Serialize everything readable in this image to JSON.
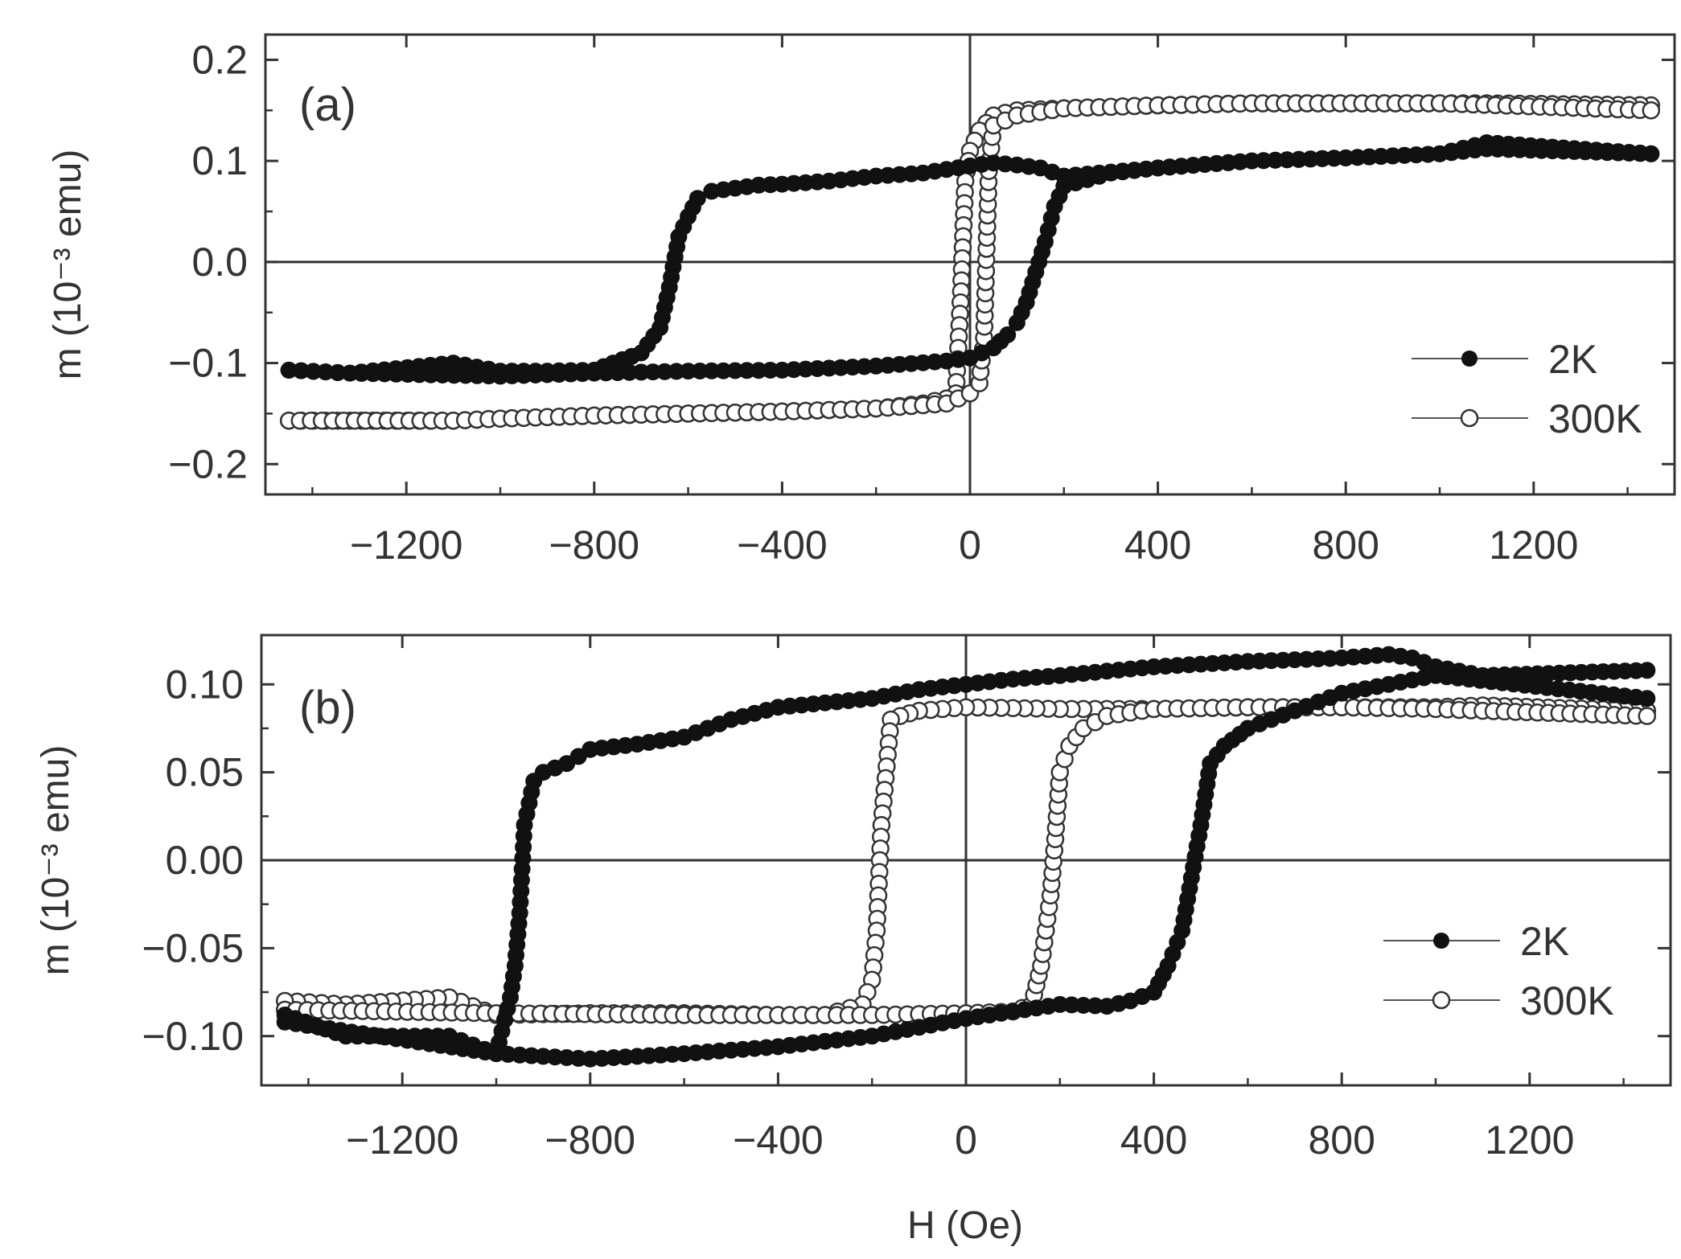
{
  "chart_data": [
    {
      "type": "scatter",
      "panel_label": "(a)",
      "xlabel": "",
      "ylabel": "m (10⁻³ emu)",
      "xlim": [
        -1500,
        1500
      ],
      "ylim": [
        -0.23,
        0.225
      ],
      "xticks": [
        -1200,
        -800,
        -400,
        0,
        400,
        800,
        1200
      ],
      "xtick_labels": [
        "−1200",
        "−800",
        "−400",
        "0",
        "400",
        "800",
        "1200"
      ],
      "yticks": [
        0.2,
        0.1,
        0.0,
        -0.1,
        -0.2
      ],
      "ytick_labels": [
        "0.2",
        "0.1",
        "0.0",
        "−0.1",
        "−0.2"
      ],
      "grid": false,
      "legend_position": "right",
      "series": [
        {
          "name": "2K",
          "marker": "filled-circle",
          "color": "#111111",
          "branches": [
            {
              "x": [
                1450,
                1100,
                1000,
                800,
                600,
                400,
                300,
                200,
                150,
                100,
                50,
                0,
                -100,
                -200,
                -300,
                -400,
                -450,
                -500,
                -550,
                -580,
                -600,
                -620,
                -640,
                -660,
                -700,
                -760,
                -800,
                -900,
                -1000,
                -1100,
                -1320,
                -1450
              ],
              "y": [
                0.107,
                0.118,
                0.107,
                0.103,
                0.1,
                0.093,
                0.089,
                0.085,
                0.093,
                0.096,
                0.098,
                0.095,
                0.088,
                0.085,
                0.08,
                0.077,
                0.076,
                0.073,
                0.07,
                0.063,
                0.045,
                0.025,
                -0.025,
                -0.065,
                -0.09,
                -0.1,
                -0.107,
                -0.108,
                -0.108,
                -0.1,
                -0.11,
                -0.107
              ]
            },
            {
              "x": [
                -1450,
                -1320,
                -1000,
                -800,
                -600,
                -400,
                -200,
                -50,
                0,
                50,
                80,
                100,
                120,
                140,
                160,
                180,
                200,
                300,
                400,
                600,
                800,
                1000,
                1100,
                1450
              ],
              "y": [
                -0.107,
                -0.11,
                -0.113,
                -0.11,
                -0.108,
                -0.107,
                -0.103,
                -0.098,
                -0.095,
                -0.085,
                -0.072,
                -0.06,
                -0.04,
                -0.01,
                0.02,
                0.055,
                0.075,
                0.088,
                0.093,
                0.1,
                0.103,
                0.107,
                0.112,
                0.107
              ]
            }
          ]
        },
        {
          "name": "300K",
          "marker": "open-circle",
          "color": "#333333",
          "branches": [
            {
              "x": [
                1450,
                1100,
                1000,
                600,
                400,
                200,
                100,
                50,
                20,
                0,
                -10,
                -20,
                -30,
                -50,
                -100,
                -200,
                -400,
                -600,
                -800,
                -1000,
                -1100,
                -1320,
                -1450
              ],
              "y": [
                0.155,
                0.157,
                0.157,
                0.157,
                0.155,
                0.152,
                0.15,
                0.145,
                0.13,
                0.11,
                0.08,
                -0.04,
                -0.13,
                -0.135,
                -0.14,
                -0.145,
                -0.148,
                -0.15,
                -0.152,
                -0.155,
                -0.157,
                -0.157,
                -0.157
              ]
            },
            {
              "x": [
                -1450,
                -1100,
                -1000,
                -800,
                -600,
                -400,
                -200,
                -50,
                0,
                20,
                30,
                40,
                50,
                100,
                200,
                400,
                600,
                1000,
                1450
              ],
              "y": [
                -0.157,
                -0.157,
                -0.155,
                -0.152,
                -0.15,
                -0.148,
                -0.145,
                -0.14,
                -0.13,
                -0.12,
                -0.075,
                0.09,
                0.135,
                0.145,
                0.152,
                0.155,
                0.157,
                0.157,
                0.15
              ]
            }
          ]
        }
      ]
    },
    {
      "type": "scatter",
      "panel_label": "(b)",
      "xlabel": "H (Oe)",
      "ylabel": "m (10⁻³ emu)",
      "xlim": [
        -1500,
        1500
      ],
      "ylim": [
        -0.128,
        0.128
      ],
      "xticks": [
        -1200,
        -800,
        -400,
        0,
        400,
        800,
        1200
      ],
      "xtick_labels": [
        "−1200",
        "−800",
        "−400",
        "0",
        "400",
        "800",
        "1200"
      ],
      "yticks": [
        0.1,
        0.05,
        0.0,
        -0.05,
        -0.1
      ],
      "ytick_labels": [
        "0.10",
        "0.05",
        "0.00",
        "−0.05",
        "−0.10"
      ],
      "grid": false,
      "legend_position": "right",
      "series": [
        {
          "name": "2K",
          "marker": "filled-circle",
          "color": "#111111",
          "branches": [
            {
              "x": [
                1450,
                1100,
                1000,
                950,
                900,
                800,
                600,
                400,
                200,
                100,
                0,
                -100,
                -200,
                -400,
                -500,
                -600,
                -700,
                -800,
                -850,
                -900,
                -920,
                -940,
                -950,
                -960,
                -970,
                -1000,
                -1100,
                -1320,
                -1450
              ],
              "y": [
                0.108,
                0.105,
                0.11,
                0.115,
                0.117,
                0.115,
                0.113,
                0.11,
                0.105,
                0.103,
                0.1,
                0.097,
                0.092,
                0.087,
                0.08,
                0.07,
                0.066,
                0.063,
                0.055,
                0.05,
                0.045,
                0.02,
                -0.03,
                -0.06,
                -0.078,
                -0.11,
                -0.1,
                -0.1,
                -0.088
              ]
            },
            {
              "x": [
                -1450,
                -1000,
                -800,
                -600,
                -400,
                -200,
                0,
                200,
                300,
                350,
                400,
                430,
                460,
                480,
                500,
                520,
                550,
                600,
                700,
                800,
                1000,
                1450
              ],
              "y": [
                -0.092,
                -0.11,
                -0.113,
                -0.11,
                -0.106,
                -0.1,
                -0.09,
                -0.082,
                -0.083,
                -0.08,
                -0.075,
                -0.06,
                -0.04,
                -0.01,
                0.02,
                0.055,
                0.065,
                0.075,
                0.085,
                0.095,
                0.105,
                0.092
              ]
            }
          ]
        },
        {
          "name": "300K",
          "marker": "open-circle",
          "color": "#333333",
          "branches": [
            {
              "x": [
                1450,
                1100,
                1000,
                800,
                600,
                400,
                200,
                0,
                -100,
                -140,
                -160,
                -180,
                -190,
                -200,
                -220,
                -300,
                -400,
                -600,
                -800,
                -1000,
                -1100,
                -1320,
                -1450
              ],
              "y": [
                0.085,
                0.088,
                0.087,
                0.087,
                0.087,
                0.086,
                0.086,
                0.087,
                0.085,
                0.082,
                0.08,
                0.02,
                -0.04,
                -0.068,
                -0.082,
                -0.088,
                -0.088,
                -0.087,
                -0.087,
                -0.088,
                -0.078,
                -0.082,
                -0.08
              ]
            },
            {
              "x": [
                -1450,
                -1000,
                -600,
                -400,
                -200,
                0,
                100,
                140,
                160,
                180,
                190,
                200,
                220,
                250,
                300,
                400,
                600,
                800,
                1000,
                1100,
                1450
              ],
              "y": [
                -0.085,
                -0.087,
                -0.088,
                -0.088,
                -0.088,
                -0.087,
                -0.086,
                -0.082,
                -0.06,
                -0.02,
                0.012,
                0.05,
                0.065,
                0.075,
                0.082,
                0.086,
                0.087,
                0.087,
                0.086,
                0.085,
                0.082
              ]
            }
          ]
        }
      ]
    }
  ]
}
